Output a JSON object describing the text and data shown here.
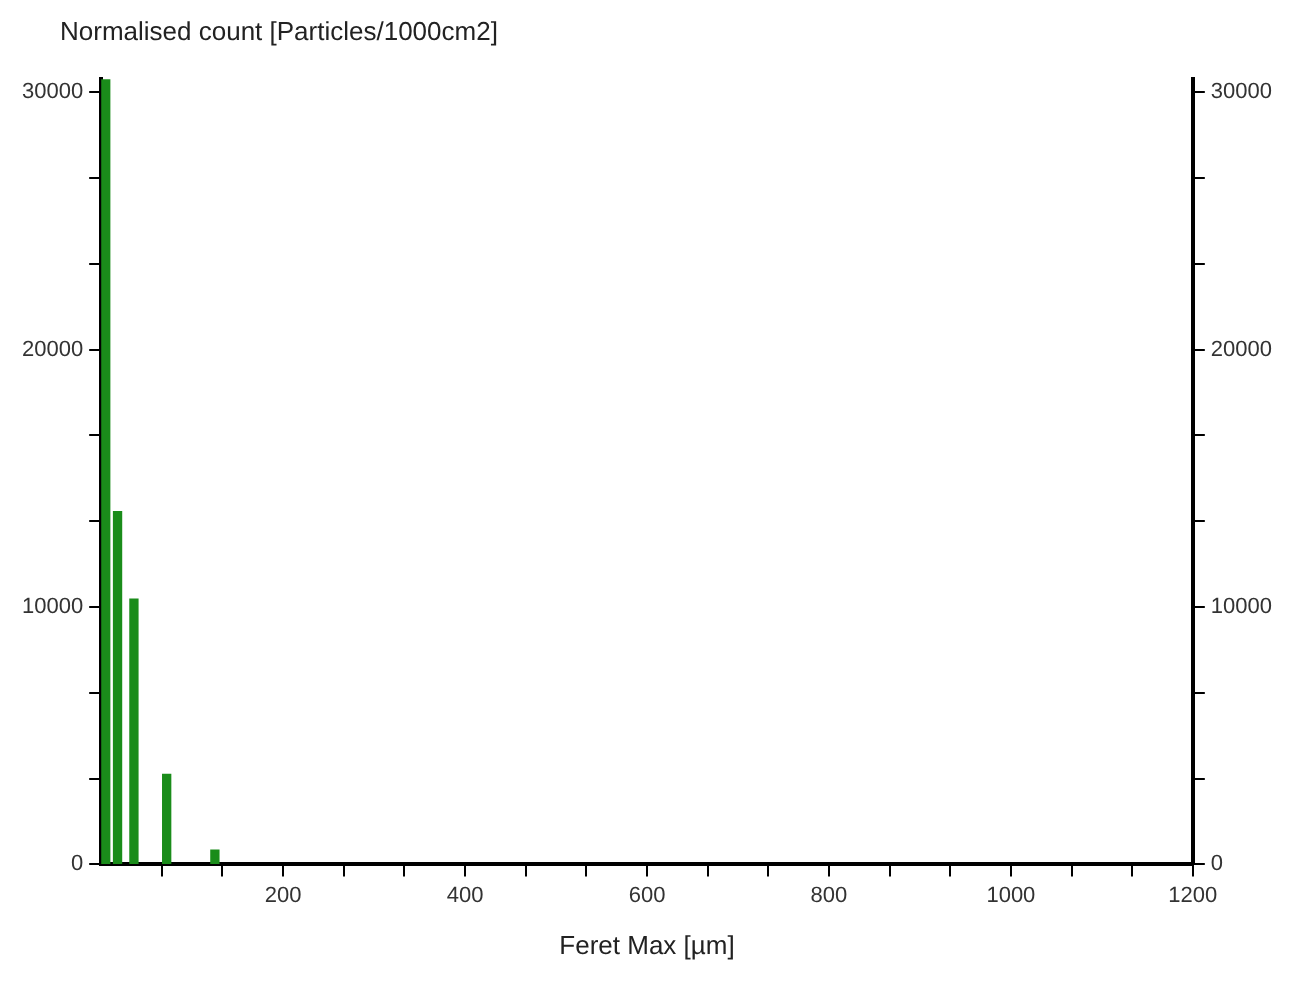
{
  "chart_data": {
    "type": "bar",
    "ylabel": "Normalised count [Particles/1000cm2]",
    "xlabel": "Feret Max [µm]",
    "x": [
      5,
      18,
      36,
      72,
      125
    ],
    "values": [
      30500,
      13700,
      10300,
      3500,
      550
    ],
    "color": "#1a8c1a",
    "xlim": [
      0,
      1200
    ],
    "xticks": [
      {
        "value": 66.7,
        "label": null
      },
      {
        "value": 133.3,
        "label": null
      },
      200,
      {
        "value": 266.7,
        "label": null
      },
      {
        "value": 333.3,
        "label": null
      },
      400,
      {
        "value": 466.7,
        "label": null
      },
      {
        "value": 533.3,
        "label": null
      },
      600,
      {
        "value": 666.7,
        "label": null
      },
      {
        "value": 733.3,
        "label": null
      },
      800,
      {
        "value": 866.7,
        "label": null
      },
      {
        "value": 933.3,
        "label": null
      },
      1000,
      {
        "value": 1066.7,
        "label": null
      },
      {
        "value": 1133.3,
        "label": null
      },
      1200
    ],
    "ylim": [
      0,
      30500
    ],
    "yticks": [
      0,
      {
        "value": 3333,
        "label": null
      },
      {
        "value": 6667,
        "label": null
      },
      10000,
      {
        "value": 13333,
        "label": null
      },
      {
        "value": 16667,
        "label": null
      },
      20000,
      {
        "value": 23333,
        "label": null
      },
      {
        "value": 26667,
        "label": null
      },
      30000
    ],
    "y2lim": [
      0,
      30500
    ],
    "y2ticks": [
      0,
      {
        "value": 3333,
        "label": null
      },
      {
        "value": 6667,
        "label": null
      },
      10000,
      {
        "value": 13333,
        "label": null
      },
      {
        "value": 16667,
        "label": null
      },
      20000,
      {
        "value": 23333,
        "label": null
      },
      {
        "value": 26667,
        "label": null
      },
      30000
    ],
    "grid": false,
    "legend": false
  }
}
